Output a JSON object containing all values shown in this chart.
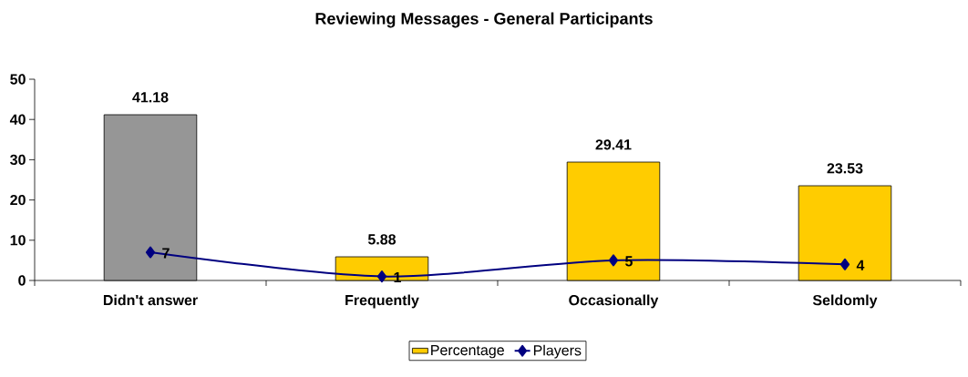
{
  "chart_data": {
    "type": "bar",
    "title": "Reviewing Messages - General Participants",
    "categories": [
      "Didn't answer",
      "Frequently",
      "Occasionally",
      "Seldomly"
    ],
    "series": [
      {
        "name": "Percentage",
        "color": "#ffcc00",
        "colors": [
          "#969696",
          "#ffcc00",
          "#ffcc00",
          "#ffcc00"
        ],
        "values": [
          41.18,
          5.88,
          29.41,
          23.53
        ]
      },
      {
        "name": "Players",
        "type": "line",
        "color": "#000080",
        "values": [
          7,
          1,
          5,
          4
        ],
        "marker": "diamond",
        "line_style": "solid"
      }
    ],
    "ylim": [
      0,
      50
    ],
    "yticks": [
      0,
      10,
      20,
      30,
      40,
      50
    ],
    "data_labels": true,
    "legend": "bottom",
    "grid": false
  }
}
